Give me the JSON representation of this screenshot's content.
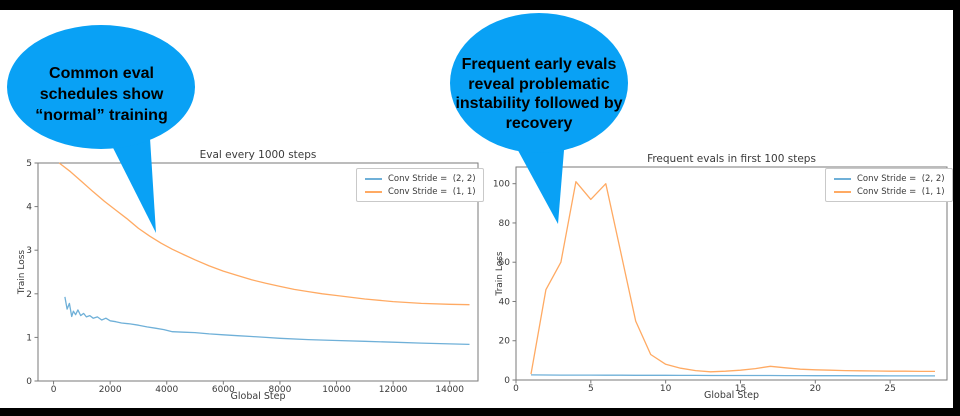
{
  "slide": {
    "background": "#ffffff",
    "frame_color": "#000000"
  },
  "bubbles": [
    {
      "name": "left-callout",
      "color": "#09a1f5",
      "text_color": "#000000",
      "lines": [
        "Common eval",
        "schedules show",
        "“normal” training"
      ]
    },
    {
      "name": "right-callout",
      "color": "#09a1f5",
      "text_color": "#000000",
      "lines": [
        "Frequent early evals",
        "reveal problematic",
        "instability followed by",
        "recovery"
      ]
    }
  ],
  "chart_data": [
    {
      "type": "line",
      "title": "Eval every 1000 steps",
      "xlabel": "Global Step",
      "ylabel": "Train Loss",
      "xlim": [
        -550,
        15000
      ],
      "ylim": [
        0,
        5
      ],
      "xticks": [
        0,
        2000,
        4000,
        6000,
        8000,
        10000,
        12000,
        14000
      ],
      "yticks": [
        0,
        1,
        2,
        3,
        4,
        5
      ],
      "grid": false,
      "legend_position": "upper right",
      "series": [
        {
          "name": "Conv Stride =  (2, 2)",
          "color": "#6fb0d8",
          "x": [
            400,
            480,
            560,
            640,
            700,
            780,
            860,
            960,
            1060,
            1160,
            1280,
            1400,
            1550,
            1700,
            1850,
            2000,
            2200,
            2400,
            2700,
            3000,
            3300,
            3600,
            3900,
            4200,
            4600,
            5000,
            5500,
            6000,
            6500,
            7000,
            7500,
            8000,
            9000,
            10000,
            11000,
            12000,
            13000,
            14000,
            14700
          ],
          "y": [
            1.93,
            1.65,
            1.78,
            1.48,
            1.6,
            1.52,
            1.63,
            1.5,
            1.55,
            1.47,
            1.5,
            1.44,
            1.47,
            1.4,
            1.44,
            1.38,
            1.36,
            1.33,
            1.31,
            1.28,
            1.24,
            1.21,
            1.18,
            1.13,
            1.12,
            1.11,
            1.08,
            1.06,
            1.04,
            1.02,
            1.0,
            0.98,
            0.95,
            0.93,
            0.91,
            0.89,
            0.87,
            0.85,
            0.84
          ]
        },
        {
          "name": "Conv Stride =  (1, 1)",
          "color": "#ffaa63",
          "x": [
            200,
            600,
            1000,
            1400,
            1800,
            2200,
            2600,
            3000,
            3400,
            3800,
            4200,
            4600,
            5000,
            5500,
            6000,
            6500,
            7000,
            7500,
            8000,
            8500,
            9000,
            9500,
            10000,
            11000,
            12000,
            13000,
            14000,
            14700
          ],
          "y": [
            5.0,
            4.8,
            4.57,
            4.34,
            4.12,
            3.92,
            3.72,
            3.5,
            3.32,
            3.16,
            3.02,
            2.9,
            2.78,
            2.64,
            2.52,
            2.42,
            2.32,
            2.24,
            2.17,
            2.1,
            2.05,
            2.0,
            1.96,
            1.88,
            1.82,
            1.78,
            1.76,
            1.75
          ]
        }
      ]
    },
    {
      "type": "line",
      "title": "Frequent evals in first 100 steps",
      "xlabel": "Global Step",
      "ylabel": "Train Loss",
      "xlim": [
        0,
        28.8
      ],
      "ylim": [
        0,
        108.5
      ],
      "xticks": [
        0,
        5,
        10,
        15,
        20,
        25
      ],
      "yticks": [
        0,
        20,
        40,
        60,
        80,
        100
      ],
      "grid": false,
      "legend_position": "upper right",
      "series": [
        {
          "name": "Conv Stride =  (2, 2)",
          "color": "#6fb0d8",
          "x": [
            1,
            2,
            3,
            4,
            5,
            6,
            7,
            8,
            9,
            10,
            11,
            12,
            13,
            14,
            15,
            16,
            17,
            18,
            19,
            20,
            21,
            22,
            23,
            24,
            25,
            26,
            27,
            28
          ],
          "y": [
            2.6,
            2.55,
            2.5,
            2.5,
            2.5,
            2.45,
            2.45,
            2.4,
            2.4,
            2.4,
            2.35,
            2.35,
            2.3,
            2.3,
            2.3,
            2.3,
            2.3,
            2.25,
            2.25,
            2.2,
            2.2,
            2.2,
            2.15,
            2.15,
            2.1,
            2.1,
            2.1,
            2.1
          ]
        },
        {
          "name": "Conv Stride =  (1, 1)",
          "color": "#ffaa63",
          "x": [
            1,
            2,
            3,
            4,
            5,
            6,
            7,
            8,
            9,
            10,
            11,
            12,
            13,
            14,
            15,
            16,
            17,
            18,
            19,
            20,
            21,
            22,
            23,
            24,
            25,
            26,
            27,
            28
          ],
          "y": [
            3,
            46,
            60,
            101,
            92,
            100,
            65,
            30,
            13,
            8,
            6,
            4.8,
            4.2,
            4.5,
            5,
            5.8,
            7,
            6.2,
            5.5,
            5.2,
            5,
            4.8,
            4.7,
            4.6,
            4.5,
            4.5,
            4.4,
            4.4
          ]
        }
      ]
    }
  ]
}
